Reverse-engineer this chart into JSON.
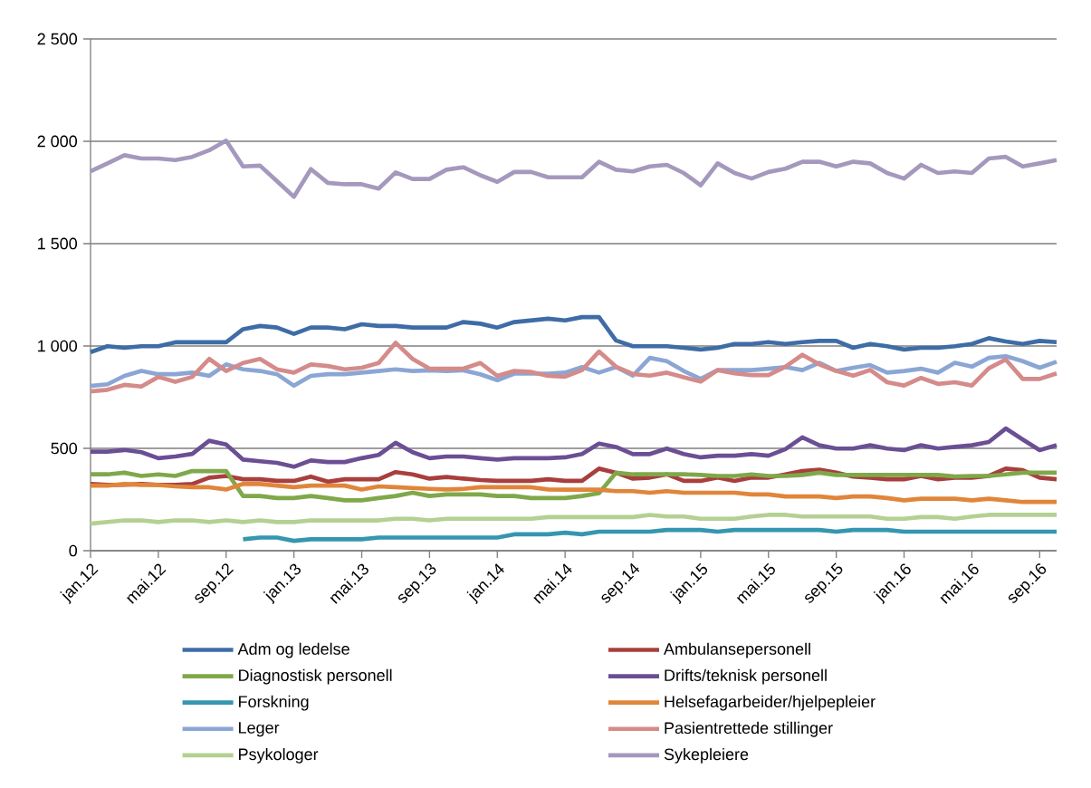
{
  "chart_data": {
    "type": "line",
    "categories": [
      "jan.12",
      null,
      null,
      null,
      "mai.12",
      null,
      null,
      null,
      "sep.12",
      null,
      null,
      null,
      "jan.13",
      null,
      null,
      null,
      "mai.13",
      null,
      null,
      null,
      "sep.13",
      null,
      null,
      null,
      "jan.14",
      null,
      null,
      null,
      "mai.14",
      null,
      null,
      null,
      "sep.14",
      null,
      null,
      null,
      "jan.15",
      null,
      null,
      null,
      "mai.15",
      null,
      null,
      null,
      "sep.15",
      null,
      null,
      null,
      "jan.16",
      null,
      null,
      null,
      "mai.16",
      null,
      null,
      null,
      "sep.16",
      null
    ],
    "ylim": [
      0,
      2500
    ],
    "yticks": [
      0,
      500,
      {
        "value": 1000,
        "label": "1 000"
      },
      {
        "value": 1500,
        "label": "1 500"
      },
      {
        "value": 2000,
        "label": "2 000"
      },
      {
        "value": 2500,
        "label": "2 500"
      }
    ],
    "grid": "y",
    "legend": "bottom",
    "line_style": "solid",
    "marker": "none",
    "series": [
      {
        "name": "Adm og ledelse",
        "color": "#3e6ca6",
        "values": [
          970,
          999,
          991,
          999,
          999,
          1018,
          1018,
          1018,
          1018,
          1082,
          1098,
          1090,
          1059,
          1090,
          1090,
          1082,
          1106,
          1098,
          1098,
          1090,
          1090,
          1090,
          1117,
          1109,
          1090,
          1117,
          1125,
          1133,
          1125,
          1141,
          1141,
          1027,
          999,
          999,
          999,
          991,
          983,
          991,
          1010,
          1010,
          1019,
          1010,
          1019,
          1025,
          1025,
          991,
          1010,
          999,
          983,
          991,
          991,
          999,
          1010,
          1038,
          1022,
          1010,
          1025,
          1019
        ]
      },
      {
        "name": "Ambulansepersonell",
        "color": "#a83f3d",
        "values": [
          326,
          321,
          322,
          326,
          322,
          321,
          326,
          357,
          365,
          349,
          349,
          341,
          341,
          362,
          337,
          349,
          349,
          349,
          384,
          373,
          352,
          360,
          352,
          345,
          341,
          341,
          341,
          349,
          341,
          341,
          401,
          381,
          352,
          357,
          373,
          341,
          341,
          357,
          341,
          357,
          357,
          373,
          389,
          396,
          381,
          362,
          357,
          349,
          349,
          365,
          349,
          357,
          357,
          365,
          401,
          393,
          357,
          349
        ]
      },
      {
        "name": "Diagnostisk personell",
        "color": "#7fa84a",
        "values": [
          373,
          373,
          381,
          365,
          373,
          365,
          389,
          389,
          389,
          267,
          267,
          257,
          257,
          267,
          257,
          246,
          246,
          257,
          267,
          283,
          267,
          275,
          275,
          275,
          267,
          267,
          257,
          257,
          257,
          267,
          281,
          381,
          373,
          373,
          373,
          373,
          370,
          365,
          365,
          373,
          365,
          365,
          370,
          381,
          370,
          370,
          370,
          370,
          370,
          370,
          370,
          362,
          365,
          365,
          373,
          381,
          381,
          381
        ]
      },
      {
        "name": "Drifts/teknisk personell",
        "color": "#6b4f94",
        "values": [
          484,
          484,
          492,
          481,
          452,
          460,
          473,
          537,
          519,
          445,
          437,
          429,
          410,
          441,
          433,
          433,
          452,
          468,
          527,
          481,
          452,
          460,
          460,
          452,
          445,
          452,
          452,
          452,
          456,
          472,
          523,
          507,
          472,
          472,
          499,
          472,
          456,
          464,
          464,
          472,
          464,
          496,
          554,
          515,
          499,
          499,
          515,
          499,
          491,
          515,
          499,
          507,
          515,
          531,
          597,
          543,
          491,
          515
        ]
      },
      {
        "name": "Forskning",
        "color": "#3596b0",
        "values": [
          null,
          null,
          null,
          null,
          null,
          null,
          null,
          null,
          null,
          56,
          64,
          64,
          48,
          56,
          56,
          56,
          56,
          64,
          64,
          64,
          64,
          64,
          64,
          64,
          64,
          80,
          80,
          80,
          88,
          80,
          93,
          93,
          93,
          93,
          101,
          101,
          101,
          93,
          101,
          101,
          101,
          101,
          101,
          101,
          93,
          101,
          101,
          101,
          93,
          93,
          93,
          93,
          93,
          93,
          93,
          93,
          93,
          93
        ]
      },
      {
        "name": "Helsefagarbeider/hjelpepleier",
        "color": "#e0853a",
        "values": [
          318,
          318,
          326,
          321,
          321,
          314,
          310,
          310,
          299,
          326,
          326,
          318,
          310,
          318,
          318,
          318,
          299,
          314,
          310,
          306,
          302,
          299,
          302,
          310,
          310,
          310,
          310,
          299,
          298,
          298,
          298,
          291,
          291,
          283,
          291,
          283,
          283,
          283,
          283,
          275,
          275,
          265,
          265,
          265,
          257,
          265,
          265,
          257,
          246,
          254,
          254,
          254,
          246,
          254,
          246,
          238,
          238,
          238
        ]
      },
      {
        "name": "Leger",
        "color": "#8ba6d4",
        "values": [
          805,
          813,
          854,
          878,
          862,
          862,
          870,
          854,
          910,
          886,
          878,
          862,
          806,
          854,
          862,
          862,
          870,
          878,
          886,
          878,
          881,
          878,
          881,
          862,
          833,
          865,
          865,
          865,
          870,
          897,
          870,
          897,
          855,
          942,
          926,
          878,
          839,
          882,
          882,
          882,
          889,
          897,
          882,
          918,
          878,
          894,
          907,
          870,
          878,
          889,
          870,
          918,
          899,
          942,
          950,
          926,
          894,
          923
        ]
      },
      {
        "name": "Pasientrettede stillinger",
        "color": "#d48b8a",
        "values": [
          778,
          786,
          810,
          802,
          849,
          825,
          849,
          937,
          878,
          917,
          937,
          886,
          870,
          910,
          902,
          886,
          894,
          917,
          1016,
          937,
          889,
          889,
          889,
          917,
          854,
          878,
          873,
          854,
          850,
          882,
          973,
          899,
          863,
          855,
          870,
          847,
          826,
          882,
          866,
          858,
          858,
          899,
          957,
          910,
          878,
          855,
          883,
          823,
          807,
          844,
          815,
          823,
          807,
          891,
          934,
          839,
          839,
          866
        ]
      },
      {
        "name": "Psykologer",
        "color": "#b4d092",
        "values": [
          132,
          140,
          148,
          148,
          140,
          148,
          148,
          140,
          148,
          140,
          148,
          140,
          140,
          148,
          148,
          148,
          148,
          148,
          156,
          156,
          148,
          156,
          156,
          156,
          156,
          156,
          156,
          164,
          164,
          164,
          164,
          164,
          164,
          175,
          167,
          167,
          156,
          156,
          156,
          167,
          175,
          175,
          167,
          167,
          167,
          167,
          167,
          156,
          156,
          164,
          164,
          156,
          167,
          175,
          175,
          175,
          175,
          175
        ]
      },
      {
        "name": "Sykepleiere",
        "color": "#a598bd",
        "values": [
          1853,
          1892,
          1932,
          1916,
          1916,
          1908,
          1924,
          1956,
          2003,
          1877,
          1881,
          1805,
          1729,
          1864,
          1797,
          1790,
          1790,
          1769,
          1848,
          1816,
          1816,
          1861,
          1873,
          1834,
          1802,
          1850,
          1850,
          1824,
          1824,
          1824,
          1900,
          1861,
          1853,
          1877,
          1885,
          1845,
          1785,
          1892,
          1845,
          1818,
          1850,
          1866,
          1900,
          1900,
          1877,
          1900,
          1892,
          1845,
          1818,
          1885,
          1845,
          1853,
          1845,
          1916,
          1924,
          1877,
          1892,
          1908
        ]
      }
    ]
  }
}
